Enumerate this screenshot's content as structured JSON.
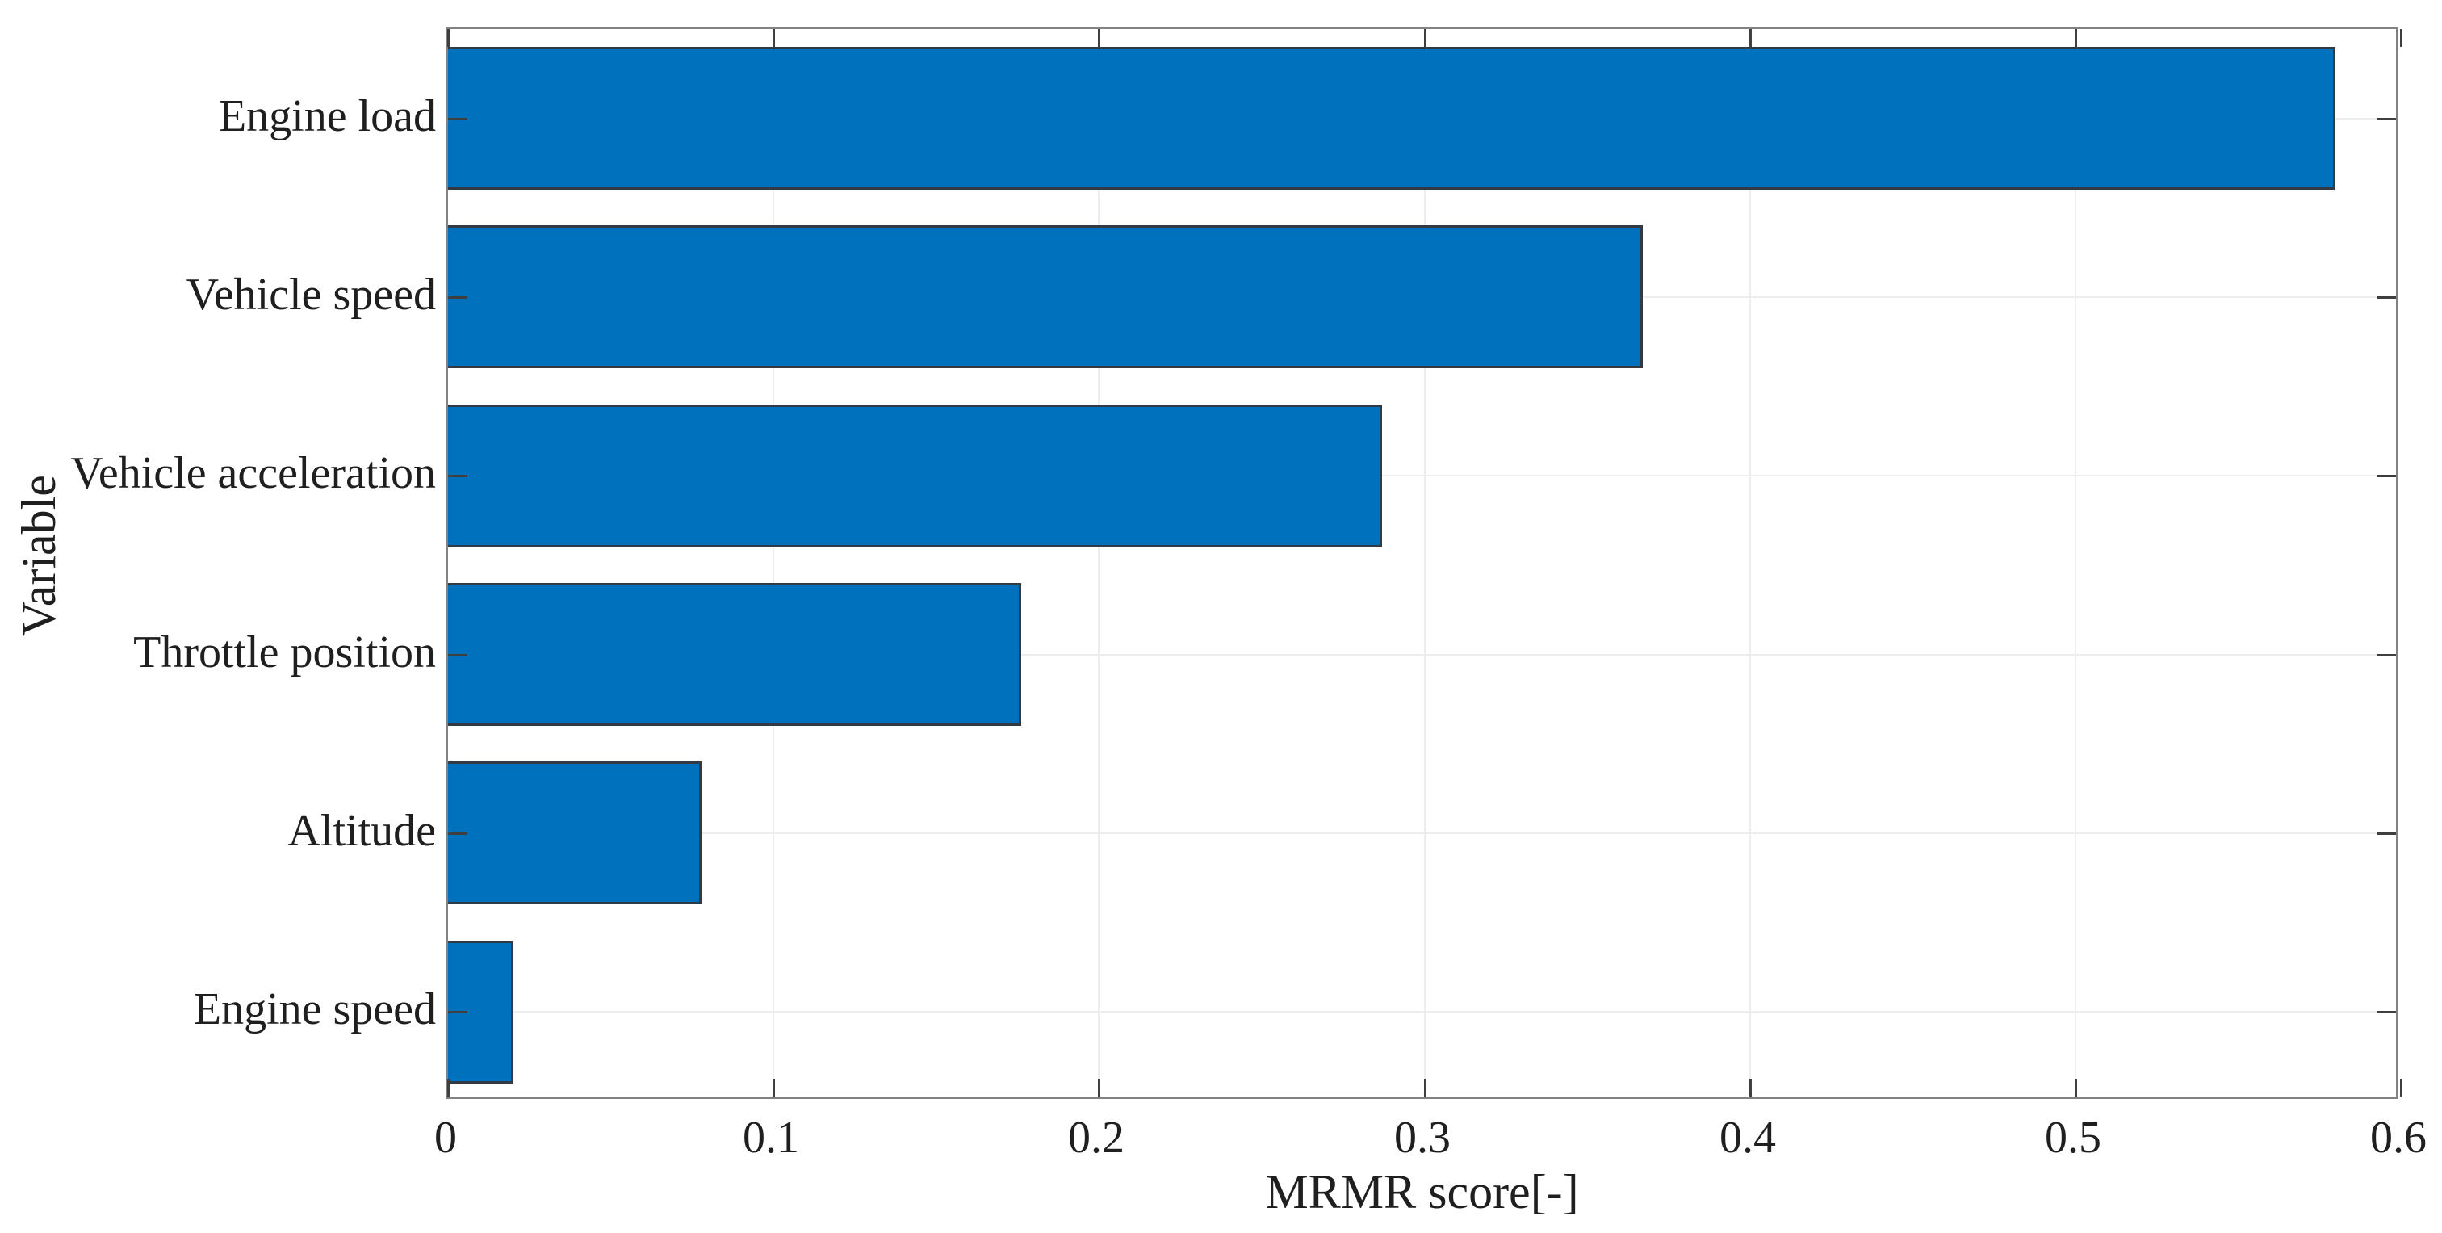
{
  "figure": {
    "background": "#ffffff"
  },
  "chart_data": {
    "type": "bar",
    "orientation": "horizontal",
    "categories": [
      "Engine load",
      "Vehicle speed",
      "Vehicle acceleration",
      "Throttle position",
      "Altitude",
      "Engine speed"
    ],
    "values": [
      0.58,
      0.367,
      0.287,
      0.176,
      0.078,
      0.02
    ],
    "xlabel": "MRMR score[-]",
    "ylabel": "Variable",
    "xlim": [
      0,
      0.6
    ],
    "xticks": [
      0,
      0.1,
      0.2,
      0.3,
      0.4,
      0.5,
      0.6
    ],
    "xtick_labels": [
      "0",
      "0.1",
      "0.2",
      "0.3",
      "0.4",
      "0.5",
      "0.6"
    ],
    "grid": true,
    "legend_position": "none",
    "bar_color": "#0072BD",
    "bar_edge_color": "#333a44",
    "axis_box_color": "#828282",
    "tick_color": "#3f3f3f",
    "grid_color": "#ededed",
    "text_color": "#1f1f1f"
  }
}
